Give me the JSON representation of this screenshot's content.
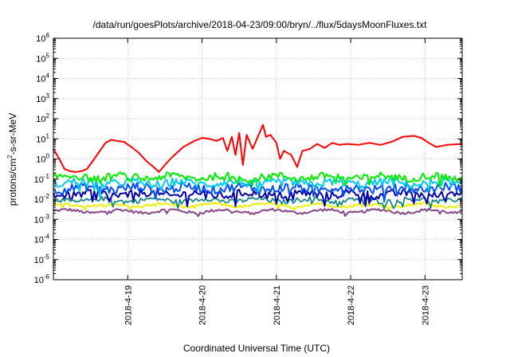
{
  "chart_data": {
    "type": "line",
    "title": "/data/run/goesPlots/archive/2018-04-23/09:00/bryn/../flux/5daysMoonFluxes.txt",
    "xlabel": "Coordinated Universal Time (UTC)",
    "ylabel_parts": [
      "protons/cm",
      "2",
      "-s-sr-MeV"
    ],
    "yscale": "log",
    "ylim_exp": [
      -6,
      6
    ],
    "ytick_base": "10",
    "ytick_exps": [
      "-6",
      "-5",
      "-4",
      "-3",
      "-2",
      "-1",
      "0",
      "1",
      "2",
      "3",
      "4",
      "5",
      "6"
    ],
    "xlim_days": [
      0,
      5.5
    ],
    "xticks": [
      {
        "label": "2018-4-19",
        "day": 1.0
      },
      {
        "label": "2018-4-20",
        "day": 2.0
      },
      {
        "label": "2018-4-21",
        "day": 3.0
      },
      {
        "label": "2018-4-22",
        "day": 4.0
      },
      {
        "label": "2018-4-23",
        "day": 5.0
      }
    ],
    "grid": true,
    "series": [
      {
        "color": "#ff0000",
        "width": 2.0,
        "points": [
          [
            0.0,
            0.5
          ],
          [
            0.08,
            0.0
          ],
          [
            0.15,
            -0.5
          ],
          [
            0.22,
            -0.6
          ],
          [
            0.3,
            -0.65
          ],
          [
            0.38,
            -0.6
          ],
          [
            0.45,
            -0.5
          ],
          [
            0.55,
            0.0
          ],
          [
            0.7,
            0.8
          ],
          [
            0.78,
            0.95
          ],
          [
            0.85,
            0.9
          ],
          [
            0.95,
            0.85
          ],
          [
            1.05,
            0.6
          ],
          [
            1.15,
            0.3
          ],
          [
            1.25,
            -0.1
          ],
          [
            1.35,
            -0.4
          ],
          [
            1.42,
            -0.65
          ],
          [
            1.5,
            -0.3
          ],
          [
            1.6,
            0.1
          ],
          [
            1.75,
            0.6
          ],
          [
            1.9,
            0.9
          ],
          [
            2.0,
            1.05
          ],
          [
            2.1,
            1.0
          ],
          [
            2.2,
            0.9
          ],
          [
            2.28,
            1.05
          ],
          [
            2.34,
            0.4
          ],
          [
            2.4,
            1.1
          ],
          [
            2.45,
            0.2
          ],
          [
            2.5,
            1.3
          ],
          [
            2.55,
            -0.3
          ],
          [
            2.6,
            1.2
          ],
          [
            2.68,
            0.5
          ],
          [
            2.75,
            1.1
          ],
          [
            2.82,
            1.7
          ],
          [
            2.86,
            1.1
          ],
          [
            2.92,
            1.2
          ],
          [
            3.0,
            0.8
          ],
          [
            3.05,
            0.0
          ],
          [
            3.1,
            0.4
          ],
          [
            3.2,
            0.2
          ],
          [
            3.28,
            -0.4
          ],
          [
            3.35,
            0.4
          ],
          [
            3.45,
            0.5
          ],
          [
            3.55,
            0.75
          ],
          [
            3.65,
            0.55
          ],
          [
            3.75,
            0.8
          ],
          [
            3.85,
            0.7
          ],
          [
            3.95,
            0.75
          ],
          [
            4.1,
            0.7
          ],
          [
            4.25,
            0.8
          ],
          [
            4.4,
            0.7
          ],
          [
            4.55,
            0.85
          ],
          [
            4.7,
            1.1
          ],
          [
            4.85,
            1.15
          ],
          [
            4.95,
            1.05
          ],
          [
            5.05,
            0.8
          ],
          [
            5.15,
            0.6
          ],
          [
            5.3,
            0.7
          ],
          [
            5.5,
            0.75
          ]
        ]
      },
      {
        "color": "#00ee00",
        "width": 2.0,
        "base": -0.9,
        "amp": 0.18
      },
      {
        "color": "#00ccee",
        "width": 2.0,
        "base": -1.2,
        "amp": 0.2
      },
      {
        "color": "#0050ff",
        "width": 2.0,
        "base": -1.45,
        "amp": 0.22
      },
      {
        "color": "#0000aa",
        "width": 2.0,
        "base": -1.75,
        "amp": 0.2
      },
      {
        "color": "#008080",
        "width": 1.6,
        "base": -2.05,
        "amp": 0.12
      },
      {
        "color": "#eeee00",
        "width": 2.0,
        "base": -2.3,
        "amp": 0.06
      },
      {
        "color": "#884488",
        "width": 2.0,
        "base": -2.6,
        "amp": 0.07
      }
    ]
  }
}
